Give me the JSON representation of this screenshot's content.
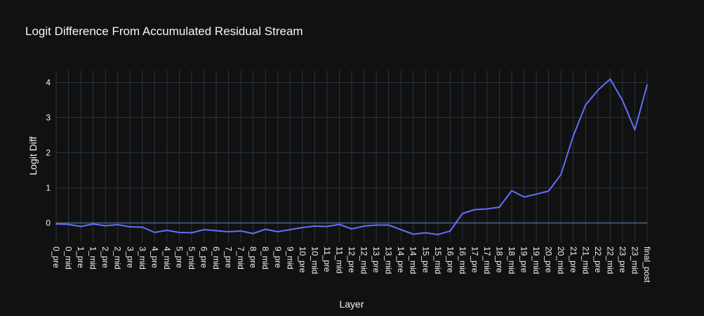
{
  "chart_data": {
    "type": "line",
    "title": "Logit Difference From Accumulated Residual Stream",
    "xlabel": "Layer",
    "ylabel": "Logit Diff",
    "ylim": [
      -0.55,
      4.35
    ],
    "yticks": [
      0,
      1,
      2,
      3,
      4
    ],
    "grid": true,
    "legend": "none",
    "categories": [
      "0_pre",
      "0_mid",
      "1_pre",
      "1_mid",
      "2_pre",
      "2_mid",
      "3_pre",
      "3_mid",
      "4_pre",
      "4_mid",
      "5_pre",
      "5_mid",
      "6_pre",
      "6_mid",
      "7_pre",
      "7_mid",
      "8_pre",
      "8_mid",
      "9_pre",
      "9_mid",
      "10_pre",
      "10_mid",
      "11_pre",
      "11_mid",
      "12_pre",
      "12_mid",
      "13_pre",
      "13_mid",
      "14_pre",
      "14_mid",
      "15_pre",
      "15_mid",
      "16_pre",
      "16_mid",
      "17_pre",
      "17_mid",
      "18_pre",
      "18_mid",
      "19_pre",
      "19_mid",
      "20_pre",
      "20_mid",
      "21_pre",
      "21_mid",
      "22_pre",
      "22_mid",
      "23_pre",
      "23_mid",
      "final_post"
    ],
    "series": [
      {
        "color": "#636efa",
        "values": [
          -0.03,
          -0.04,
          -0.1,
          -0.03,
          -0.08,
          -0.05,
          -0.11,
          -0.12,
          -0.27,
          -0.21,
          -0.27,
          -0.28,
          -0.19,
          -0.22,
          -0.25,
          -0.23,
          -0.3,
          -0.18,
          -0.25,
          -0.19,
          -0.13,
          -0.09,
          -0.1,
          -0.04,
          -0.17,
          -0.09,
          -0.06,
          -0.06,
          -0.19,
          -0.32,
          -0.28,
          -0.33,
          -0.23,
          0.27,
          0.38,
          0.4,
          0.45,
          0.92,
          0.74,
          0.82,
          0.91,
          1.38,
          2.48,
          3.36,
          3.78,
          4.1,
          3.49,
          2.65,
          3.93
        ]
      }
    ]
  }
}
